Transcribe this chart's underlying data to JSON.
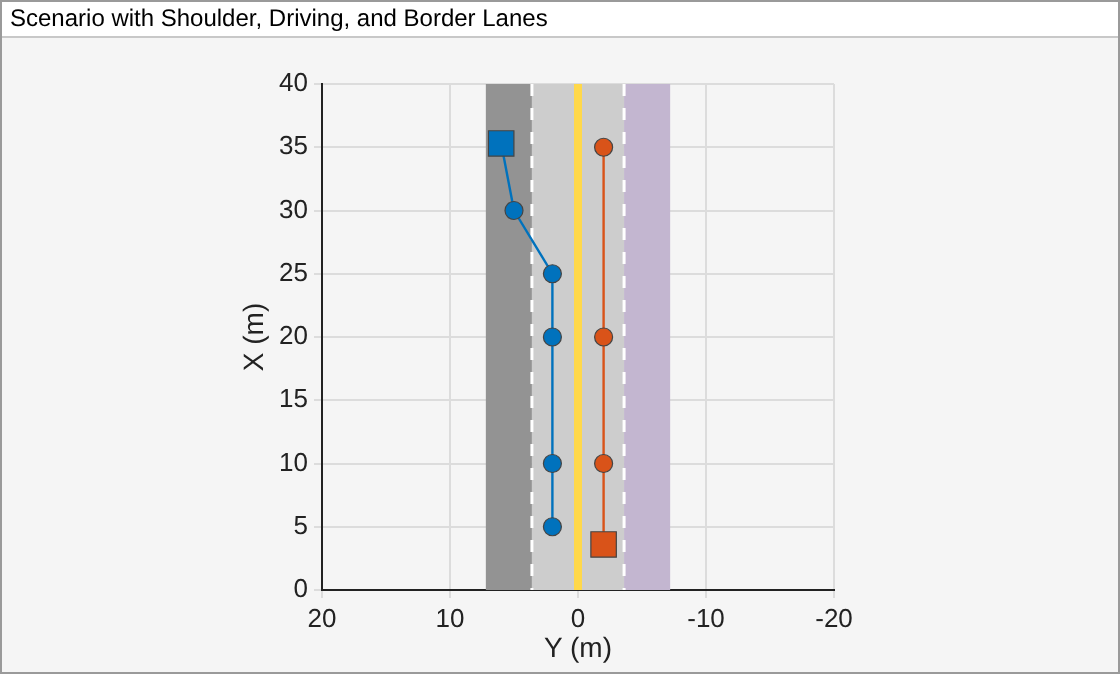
{
  "chart_data": {
    "type": "line",
    "title": "Scenario with Shoulder, Driving, and Border Lanes",
    "xlabel": "Y (m)",
    "ylabel": "X (m)",
    "xlim": [
      20,
      -20
    ],
    "xticks": [
      20,
      10,
      0,
      -10,
      -20
    ],
    "ylim": [
      0,
      40
    ],
    "yticks": [
      0,
      5,
      10,
      15,
      20,
      25,
      30,
      35,
      40
    ],
    "grid": true,
    "legend": false,
    "bands": [
      {
        "axis": "x",
        "from": 7.2,
        "to": 3.6,
        "color": "#939393"
      },
      {
        "axis": "x",
        "from": 3.6,
        "to": -3.6,
        "color": "#cdcdcd"
      },
      {
        "axis": "x",
        "from": -3.6,
        "to": -7.2,
        "color": "#c3b6d0"
      }
    ],
    "ref_lines": [
      {
        "axis": "x",
        "value": 3.6,
        "color": "#ffffff",
        "line_style": "dashed"
      },
      {
        "axis": "x",
        "value": 0,
        "color": "#ffd84a",
        "line_style": "solid"
      },
      {
        "axis": "x",
        "value": -3.6,
        "color": "#ffffff",
        "line_style": "dashed"
      }
    ],
    "series": [
      {
        "type": "line",
        "color": "#0072bd",
        "marker": "none",
        "x": [
          2,
          2,
          2,
          2,
          5,
          6
        ],
        "values": [
          5,
          10,
          20,
          25,
          30,
          35.3
        ]
      },
      {
        "type": "line",
        "color": "#d95319",
        "marker": "none",
        "x": [
          -2,
          -2,
          -2,
          -2
        ],
        "values": [
          3.6,
          10,
          20,
          35
        ]
      },
      {
        "type": "scatter",
        "color": "#0072bd",
        "marker": "circle",
        "x": [
          2,
          2,
          2,
          2,
          5
        ],
        "values": [
          5,
          10,
          20,
          25,
          30
        ]
      },
      {
        "type": "scatter",
        "color": "#d95319",
        "marker": "circle",
        "x": [
          -2,
          -2,
          -2
        ],
        "values": [
          10,
          20,
          35
        ]
      },
      {
        "type": "scatter",
        "color": "#0072bd",
        "marker": "square",
        "x": [
          6
        ],
        "values": [
          35.3
        ]
      },
      {
        "type": "scatter",
        "color": "#d95319",
        "marker": "square",
        "x": [
          -2
        ],
        "values": [
          3.6
        ]
      }
    ]
  }
}
